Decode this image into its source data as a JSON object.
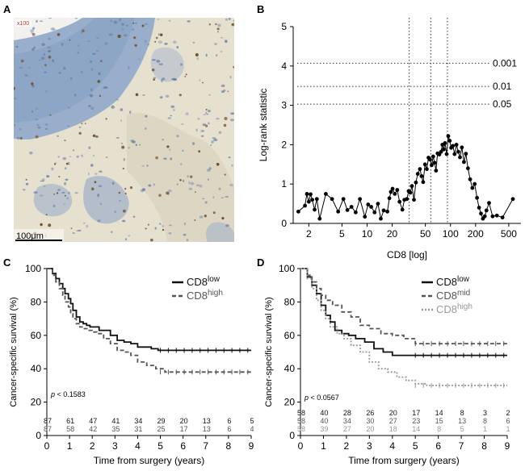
{
  "panels": {
    "a": "A",
    "b": "B",
    "c": "C",
    "d": "D"
  },
  "micrograph": {
    "magnification": "x100",
    "scale_bar": "100μm"
  },
  "colors": {
    "tissue_bg": "#e6e0cf",
    "epithelium": "#8fa6c4",
    "nuclei": "#5e78a6",
    "cd8_stain": "#6b4a22",
    "black": "#111111",
    "dark_gray": "#555555",
    "light_gray": "#999999"
  },
  "chart_data": [
    {
      "id": "B",
      "type": "scatter",
      "xlabel": "CD8  [log]",
      "ylabel": "Log-rank statistic",
      "x_scale": "log",
      "xlim": [
        1.3,
        700
      ],
      "ylim": [
        0,
        5
      ],
      "x_ticks": [
        2,
        5,
        10,
        20,
        50,
        100,
        200,
        500
      ],
      "y_ticks": [
        0,
        1,
        2,
        3,
        4,
        5
      ],
      "vertical_cutoffs": [
        32,
        58,
        92
      ],
      "threshold_lines": [
        {
          "label": "0.001",
          "y": 4.07
        },
        {
          "label": "0.01",
          "y": 3.48
        },
        {
          "label": "0.05",
          "y": 3.03
        }
      ],
      "x": [
        1.5,
        1.8,
        1.9,
        2.0,
        2.1,
        2.2,
        2.35,
        2.5,
        2.7,
        3.2,
        3.8,
        4.5,
        5.2,
        5.8,
        6.5,
        7.3,
        8.2,
        9.4,
        10.3,
        11.2,
        12.3,
        13.5,
        14.6,
        15.8,
        17.5,
        18.5,
        19.3,
        20.2,
        21.5,
        23.0,
        24.5,
        26.5,
        28.0,
        30.0,
        31.5,
        33.0,
        34.5,
        36.5,
        38.5,
        40.5,
        43.0,
        45.0,
        47.0,
        49.5,
        52.0,
        54.5,
        57.0,
        59.5,
        62.0,
        64.5,
        67.0,
        70.0,
        73.5,
        77.0,
        80.0,
        83.0,
        86.0,
        90.0,
        94.0,
        98.0,
        102.0,
        107.0,
        112.0,
        118.0,
        124.0,
        130.0,
        137.0,
        145.0,
        153.0,
        162.0,
        172.0,
        183.0,
        195.0,
        208.0,
        220.0,
        232.0,
        245.0,
        258.0,
        270.0,
        290.0,
        320.0,
        360.0,
        420.0,
        560.0
      ],
      "y": [
        0.3,
        0.45,
        0.75,
        0.55,
        0.74,
        0.6,
        0.35,
        0.62,
        0.12,
        0.75,
        0.62,
        0.3,
        0.62,
        0.34,
        0.42,
        0.28,
        0.62,
        0.17,
        0.48,
        0.42,
        0.28,
        0.5,
        0.12,
        0.33,
        0.3,
        0.64,
        0.8,
        0.88,
        0.75,
        0.85,
        0.55,
        0.35,
        0.6,
        0.62,
        0.82,
        0.78,
        0.95,
        0.6,
        1.04,
        1.26,
        1.38,
        1.2,
        1.05,
        1.5,
        1.38,
        1.67,
        1.62,
        1.48,
        1.7,
        1.54,
        1.34,
        1.78,
        1.75,
        1.82,
        2.0,
        1.88,
        2.04,
        1.76,
        2.22,
        2.1,
        1.92,
        1.97,
        1.76,
        2.0,
        1.82,
        1.68,
        1.93,
        1.56,
        1.77,
        1.4,
        1.12,
        0.9,
        1.0,
        0.65,
        0.4,
        0.25,
        0.12,
        0.18,
        0.33,
        0.52,
        0.18,
        0.2,
        0.15,
        0.62
      ]
    },
    {
      "id": "C",
      "type": "line",
      "xlabel": "Time from surgery (years)",
      "ylabel": "Cancer-specific survival (%)",
      "xlim": [
        0,
        9
      ],
      "ylim": [
        0,
        100
      ],
      "x_ticks": [
        0,
        1,
        2,
        3,
        4,
        5,
        6,
        7,
        8,
        9
      ],
      "y_ticks": [
        0,
        20,
        40,
        60,
        80,
        100
      ],
      "p_label": "p",
      "p_value_text": "< 0.1583",
      "series": [
        {
          "name": "CD8",
          "superscript": "low",
          "style": "solid",
          "color": "#111111",
          "x": [
            0,
            0.25,
            0.4,
            0.55,
            0.7,
            0.8,
            0.95,
            1.05,
            1.15,
            1.3,
            1.45,
            1.6,
            1.75,
            1.9,
            2.1,
            2.3,
            2.5,
            2.8,
            3.1,
            3.4,
            3.7,
            4.0,
            4.3,
            4.6,
            4.9,
            5.5,
            6.0,
            7.0,
            8.0,
            9.0
          ],
          "y": [
            100,
            97,
            94,
            91,
            88,
            85,
            82,
            79,
            75,
            71,
            68,
            67,
            66,
            65,
            65,
            63,
            63,
            60,
            57,
            56,
            55,
            53,
            53,
            52,
            51,
            51,
            51,
            51,
            51,
            51
          ],
          "risk_numbers": [
            87,
            61,
            47,
            41,
            34,
            29,
            20,
            13,
            6,
            5
          ]
        },
        {
          "name": "CD8",
          "superscript": "high",
          "style": "dashed",
          "color": "#555555",
          "x": [
            0,
            0.25,
            0.4,
            0.55,
            0.7,
            0.8,
            0.95,
            1.05,
            1.15,
            1.3,
            1.45,
            1.6,
            1.8,
            2.0,
            2.2,
            2.5,
            2.8,
            3.1,
            3.4,
            3.7,
            4.0,
            4.4,
            4.8,
            5.2,
            6.0,
            7.0,
            8.0,
            9.0
          ],
          "y": [
            100,
            96,
            92,
            88,
            84,
            80,
            77,
            73,
            70,
            67,
            65,
            64,
            63,
            62,
            61,
            58,
            55,
            51,
            50,
            48,
            44,
            42,
            40,
            38,
            38,
            38,
            38,
            38
          ],
          "risk_numbers": [
            87,
            58,
            42,
            35,
            31,
            25,
            17,
            13,
            6,
            4
          ]
        }
      ]
    },
    {
      "id": "D",
      "type": "line",
      "xlabel": "Time from surgery (years)",
      "ylabel": "Cancer-specific survival (%)",
      "xlim": [
        0,
        9
      ],
      "ylim": [
        0,
        100
      ],
      "x_ticks": [
        0,
        1,
        2,
        3,
        4,
        5,
        6,
        7,
        8,
        9
      ],
      "y_ticks": [
        0,
        20,
        40,
        60,
        80,
        100
      ],
      "p_label": "p",
      "p_value_text": "< 0.0567",
      "series": [
        {
          "name": "CD8",
          "superscript": "low",
          "style": "solid",
          "color": "#111111",
          "x": [
            0,
            0.3,
            0.5,
            0.7,
            0.9,
            1.1,
            1.3,
            1.5,
            1.8,
            2.1,
            2.4,
            2.8,
            3.2,
            3.6,
            4.0,
            5.0,
            6.0,
            7.0,
            8.0,
            9.0
          ],
          "y": [
            100,
            95,
            90,
            85,
            78,
            72,
            68,
            63,
            61,
            60,
            58,
            56,
            52,
            50,
            48,
            48,
            48,
            48,
            48,
            48
          ],
          "risk_numbers": [
            58,
            40,
            28,
            26,
            20,
            17,
            14,
            8,
            3,
            2
          ]
        },
        {
          "name": "CD8",
          "superscript": "mid",
          "style": "dashed",
          "color": "#555555",
          "x": [
            0,
            0.3,
            0.5,
            0.7,
            0.9,
            1.1,
            1.4,
            1.8,
            2.2,
            2.6,
            3.0,
            3.5,
            4.0,
            4.5,
            5.0,
            6.0,
            7.0,
            8.0,
            9.0
          ],
          "y": [
            100,
            96,
            92,
            88,
            84,
            81,
            78,
            74,
            71,
            66,
            64,
            61,
            60,
            58,
            55,
            55,
            55,
            55,
            55
          ],
          "risk_numbers": [
            58,
            40,
            34,
            30,
            27,
            23,
            15,
            13,
            8,
            6
          ]
        },
        {
          "name": "CD8",
          "superscript": "high",
          "style": "dotted",
          "color": "#999999",
          "x": [
            0,
            0.3,
            0.5,
            0.7,
            0.9,
            1.1,
            1.3,
            1.6,
            1.9,
            2.2,
            2.6,
            3.0,
            3.4,
            3.8,
            4.2,
            4.6,
            5.0,
            5.5,
            6.0,
            6.5,
            7.0,
            8.0,
            9.0
          ],
          "y": [
            100,
            94,
            88,
            81,
            75,
            70,
            65,
            61,
            58,
            54,
            50,
            44,
            40,
            38,
            35,
            33,
            31,
            30,
            30,
            30,
            30,
            30,
            30
          ],
          "risk_numbers": [
            58,
            39,
            27,
            20,
            18,
            14,
            8,
            5,
            1,
            1
          ]
        }
      ]
    }
  ]
}
